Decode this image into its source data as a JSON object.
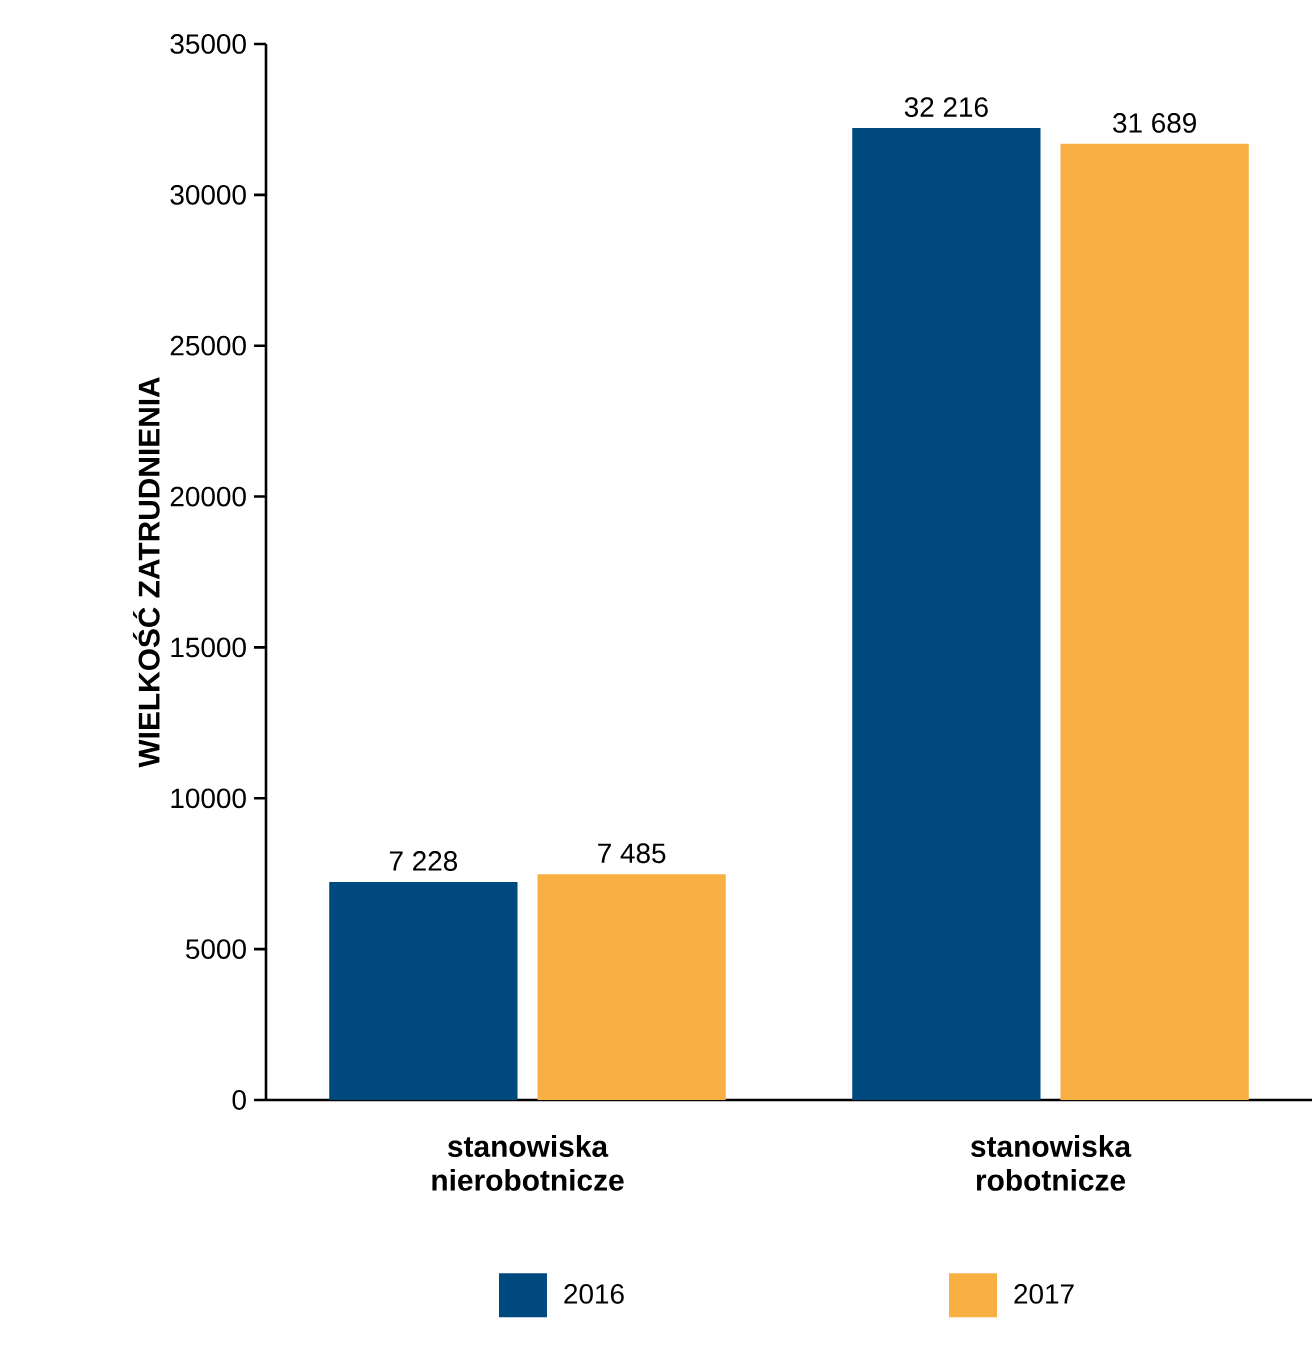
{
  "chart_data": {
    "type": "bar",
    "ylabel": "WIELKOŚĆ ZATRUDNIENIA",
    "categories": [
      "stanowiska nierobotnicze",
      "stanowiska robotnicze"
    ],
    "series": [
      {
        "name": "2016",
        "color": "#00497f",
        "values": [
          7228,
          32216
        ],
        "value_labels": [
          "7 228",
          "32 216"
        ]
      },
      {
        "name": "2017",
        "color": "#f9b043",
        "values": [
          7485,
          31689
        ],
        "value_labels": [
          "7 485",
          "31 689"
        ]
      }
    ],
    "ylim": [
      0,
      35000
    ],
    "yticks": [
      0,
      5000,
      10000,
      15000,
      20000,
      25000,
      30000,
      35000
    ],
    "legend": "bottom"
  }
}
